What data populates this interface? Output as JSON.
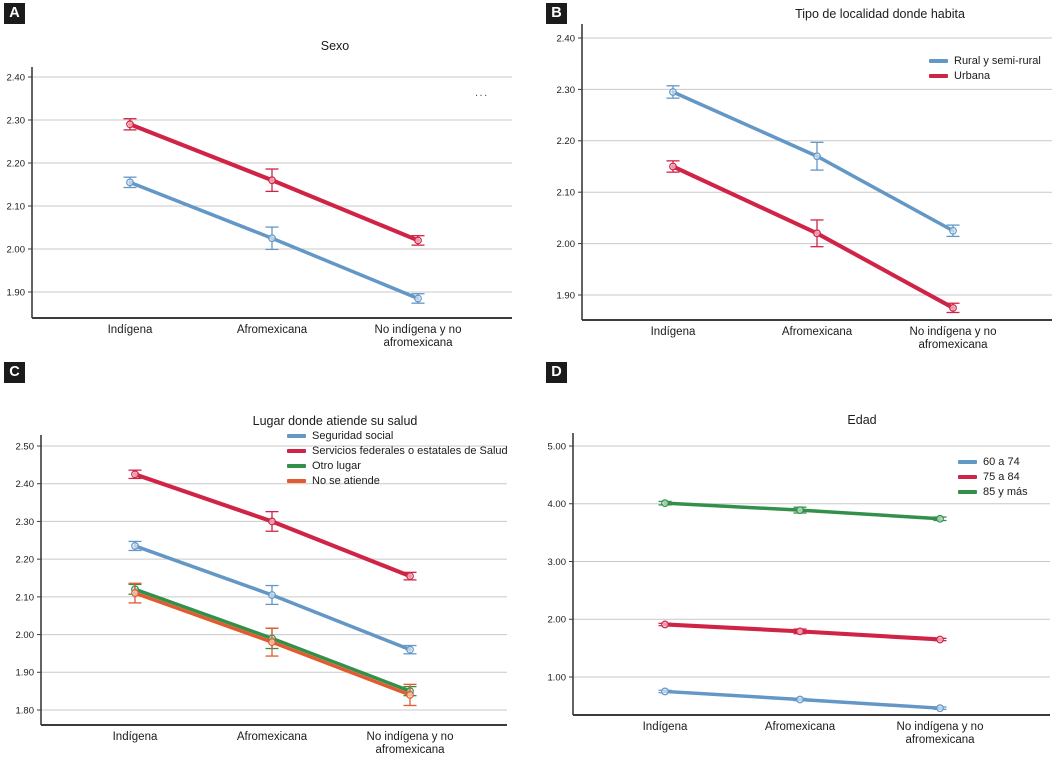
{
  "figure": {
    "panel_labels": [
      "A",
      "B",
      "C",
      "D"
    ],
    "truncated_legend_ellipsis": "...",
    "category_display_lines": [
      [
        "Indígena"
      ],
      [
        "Afromexicana"
      ],
      [
        "No indígena y no",
        "afromexicana"
      ]
    ],
    "colors": {
      "blue": "#6397C6",
      "red": "#D02447",
      "green": "#33904A",
      "orange": "#E25B2E",
      "grid": "#C9C9C9",
      "axis": "#3C3C3C",
      "text": "#1B1B1B"
    }
  },
  "chart_data": [
    {
      "type": "line",
      "panel": "A",
      "title": "Sexo",
      "categories": [
        "Indígena",
        "Afromexicana",
        "No indígena y no afromexicana"
      ],
      "xlabel": "",
      "ylabel": "",
      "ylim": [
        1.85,
        2.42
      ],
      "yticks": [
        2.4,
        2.3,
        2.2,
        2.1,
        2.0,
        1.9
      ],
      "ytick_labels": [
        "2.40",
        "2.30",
        "2.20",
        "2.10",
        "2.00",
        "1.90"
      ],
      "grid": true,
      "error_bars": true,
      "legend_position": "truncated-top-right",
      "series": [
        {
          "name": "",
          "color": "red",
          "values": [
            2.29,
            2.16,
            2.02
          ],
          "errors": [
            0.013,
            0.026,
            0.011
          ]
        },
        {
          "name": "",
          "color": "blue",
          "values": [
            2.155,
            2.025,
            1.885
          ],
          "errors": [
            0.012,
            0.026,
            0.011
          ]
        }
      ]
    },
    {
      "type": "line",
      "panel": "B",
      "title": "Tipo de localidad donde habita",
      "categories": [
        "Indígena",
        "Afromexicana",
        "No indígena y no afromexicana"
      ],
      "xlabel": "",
      "ylabel": "",
      "ylim": [
        1.85,
        2.42
      ],
      "yticks": [
        2.4,
        2.3,
        2.2,
        2.1,
        2.0,
        1.9
      ],
      "ytick_labels": [
        "2.40",
        "2.30",
        "2.20",
        "2.10",
        "2.00",
        "1.90"
      ],
      "grid": true,
      "error_bars": true,
      "legend_position": "top-right",
      "series": [
        {
          "name": "Rural y semi-rural",
          "color": "blue",
          "values": [
            2.295,
            2.17,
            2.025
          ],
          "errors": [
            0.012,
            0.027,
            0.011
          ]
        },
        {
          "name": "Urbana",
          "color": "red",
          "values": [
            2.15,
            2.02,
            1.875
          ],
          "errors": [
            0.011,
            0.026,
            0.009
          ]
        }
      ]
    },
    {
      "type": "line",
      "panel": "C",
      "title": "Lugar donde atiende su salud",
      "categories": [
        "Indígena",
        "Afromexicana",
        "No indígena y no afromexicana"
      ],
      "xlabel": "",
      "ylabel": "",
      "ylim": [
        1.76,
        2.53
      ],
      "yticks": [
        2.5,
        2.4,
        2.3,
        2.2,
        2.1,
        2.0,
        1.9,
        1.8
      ],
      "ytick_labels": [
        "2.50",
        "2.40",
        "2.30",
        "2.20",
        "2.10",
        "2.00",
        "1.90",
        "1.80"
      ],
      "grid": true,
      "error_bars": true,
      "legend_position": "top-center",
      "series": [
        {
          "name": "Seguridad social",
          "color": "blue",
          "values": [
            2.235,
            2.105,
            1.96
          ],
          "errors": [
            0.012,
            0.025,
            0.011
          ]
        },
        {
          "name": "Servicios federales o estatales de Salud",
          "color": "red",
          "values": [
            2.425,
            2.3,
            2.155
          ],
          "errors": [
            0.011,
            0.026,
            0.01
          ]
        },
        {
          "name": "Otro lugar",
          "color": "green",
          "values": [
            2.12,
            1.99,
            1.85
          ],
          "errors": [
            0.013,
            0.027,
            0.012
          ]
        },
        {
          "name": "No se atiende",
          "color": "orange",
          "values": [
            2.11,
            1.98,
            1.84
          ],
          "errors": [
            0.026,
            0.037,
            0.028
          ]
        }
      ]
    },
    {
      "type": "line",
      "panel": "D",
      "title": "Edad",
      "categories": [
        "Indígena",
        "Afromexicana",
        "No indígena y no afromexicana"
      ],
      "xlabel": "",
      "ylabel": "",
      "ylim": [
        0.2,
        5.2
      ],
      "yticks": [
        5.0,
        4.0,
        3.0,
        2.0,
        1.0
      ],
      "ytick_labels": [
        "5.00",
        "4.00",
        "3.00",
        "2.00",
        "1.00"
      ],
      "grid": true,
      "error_bars": true,
      "legend_position": "right",
      "series": [
        {
          "name": "60 a 74",
          "color": "blue",
          "values": [
            0.75,
            0.61,
            0.46
          ],
          "errors": [
            0.02,
            0.02,
            0.02
          ]
        },
        {
          "name": "75 a 84",
          "color": "red",
          "values": [
            1.91,
            1.79,
            1.65
          ],
          "errors": [
            0.02,
            0.04,
            0.02
          ]
        },
        {
          "name": "85 y más",
          "color": "green",
          "values": [
            4.01,
            3.89,
            3.74
          ],
          "errors": [
            0.03,
            0.05,
            0.03
          ]
        }
      ]
    }
  ]
}
